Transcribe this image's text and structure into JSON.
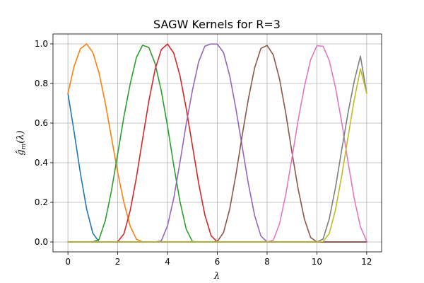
{
  "chart_data": {
    "type": "line",
    "title": "SAGW Kernels for R=3",
    "xlabel": "λ",
    "ylabel_main": "ĝ",
    "ylabel_sub": "m",
    "ylabel_tail": "(λ)",
    "xlim": [
      -0.6,
      12.6
    ],
    "ylim": [
      -0.05,
      1.05
    ],
    "x_ticks": [
      0,
      2,
      4,
      6,
      8,
      10,
      12
    ],
    "x_tick_labels": [
      "0",
      "2",
      "4",
      "6",
      "8",
      "10",
      "12"
    ],
    "y_ticks": [
      0.0,
      0.2,
      0.4,
      0.6,
      0.8,
      1.0
    ],
    "y_tick_labels": [
      "0.0",
      "0.2",
      "0.4",
      "0.6",
      "0.8",
      "1.0"
    ],
    "grid": true,
    "x": [
      0,
      0.25,
      0.5,
      0.75,
      1.0,
      1.25,
      1.5,
      1.75,
      2.0,
      2.25,
      2.5,
      2.75,
      3.0,
      3.25,
      3.5,
      3.75,
      4.0,
      4.25,
      4.5,
      4.75,
      5.0,
      5.25,
      5.5,
      5.75,
      6.0,
      6.25,
      6.5,
      6.75,
      7.0,
      7.25,
      7.5,
      7.75,
      8.0,
      8.25,
      8.5,
      8.75,
      9.0,
      9.25,
      9.5,
      9.75,
      10.0,
      10.25,
      10.5,
      10.75,
      11.0,
      11.25,
      11.5,
      11.75,
      12.0
    ],
    "series": [
      {
        "color": "#1f77b4",
        "values": [
          0.75,
          0.5541,
          0.3471,
          0.1668,
          0.0445,
          0,
          0,
          0,
          0,
          0,
          0,
          0,
          0,
          0,
          0,
          0,
          0,
          0,
          0,
          0,
          0,
          0,
          0,
          0,
          0,
          0,
          0,
          0,
          0,
          0,
          0,
          0,
          0,
          0,
          0,
          0,
          0,
          0,
          0,
          0,
          0,
          0,
          0,
          0,
          0,
          0,
          0,
          0,
          0
        ]
      },
      {
        "color": "#ff7f0e",
        "values": [
          0.75,
          0.888,
          0.9755,
          0.9997,
          0.9568,
          0.8527,
          0.7018,
          0.5257,
          0.3497,
          0.1984,
          0.08,
          0.0141,
          0,
          0,
          0,
          0,
          0,
          0,
          0,
          0,
          0,
          0,
          0,
          0,
          0,
          0,
          0,
          0,
          0,
          0,
          0,
          0,
          0,
          0,
          0,
          0,
          0,
          0,
          0,
          0,
          0,
          0,
          0,
          0,
          0,
          0,
          0,
          0,
          0
        ]
      },
      {
        "color": "#2ca02c",
        "values": [
          0,
          0,
          0,
          0,
          0,
          0.0128,
          0.1075,
          0.2599,
          0.4457,
          0.634,
          0.7972,
          0.9311,
          0.9932,
          0.9818,
          0.9011,
          0.7627,
          0.5844,
          0.3871,
          0.2046,
          0.0648,
          0.0025,
          0,
          0,
          0,
          0,
          0,
          0,
          0,
          0,
          0,
          0,
          0,
          0,
          0,
          0,
          0,
          0,
          0,
          0,
          0,
          0,
          0,
          0,
          0,
          0,
          0,
          0,
          0,
          0
        ]
      },
      {
        "color": "#d62728",
        "values": [
          0,
          0,
          0,
          0,
          0,
          0,
          0,
          0,
          0.0017,
          0.0413,
          0.1577,
          0.3249,
          0.5199,
          0.7115,
          0.8699,
          0.9712,
          0.9991,
          0.9536,
          0.8398,
          0.6744,
          0.486,
          0.2967,
          0.1365,
          0.032,
          0,
          0,
          0,
          0,
          0,
          0,
          0,
          0,
          0,
          0,
          0,
          0,
          0,
          0,
          0,
          0,
          0,
          0,
          0,
          0,
          0,
          0,
          0,
          0,
          0
        ]
      },
      {
        "color": "#9467bd",
        "values": [
          0,
          0,
          0,
          0,
          0,
          0,
          0,
          0,
          0,
          0,
          0,
          0,
          0,
          0,
          0,
          0.005,
          0.0818,
          0.221,
          0.4017,
          0.5944,
          0.7653,
          0.909,
          0.9882,
          0.9994,
          0.999,
          0.9567,
          0.8384,
          0.6705,
          0.481,
          0.293,
          0.134,
          0.0306,
          0,
          0,
          0,
          0,
          0,
          0,
          0,
          0,
          0,
          0,
          0,
          0,
          0,
          0,
          0,
          0,
          0
        ]
      },
      {
        "color": "#8c564b",
        "values": [
          0,
          0,
          0,
          0,
          0,
          0,
          0,
          0,
          0,
          0,
          0,
          0,
          0,
          0,
          0,
          0,
          0,
          0,
          0,
          0,
          0,
          0,
          0,
          0,
          0.0023,
          0.0475,
          0.167,
          0.341,
          0.5383,
          0.723,
          0.879,
          0.977,
          0.992,
          0.944,
          0.822,
          0.651,
          0.452,
          0.266,
          0.115,
          0.0225,
          0,
          0,
          0,
          0,
          0,
          0,
          0,
          0,
          0
        ]
      },
      {
        "color": "#e377c2",
        "values": [
          0,
          0,
          0,
          0,
          0,
          0,
          0,
          0,
          0,
          0,
          0,
          0,
          0,
          0,
          0,
          0,
          0,
          0,
          0,
          0,
          0,
          0,
          0,
          0,
          0,
          0,
          0,
          0,
          0,
          0,
          0,
          0,
          0,
          0.009,
          0.092,
          0.24,
          0.424,
          0.617,
          0.785,
          0.92,
          0.991,
          0.988,
          0.915,
          0.778,
          0.602,
          0.405,
          0.22,
          0.076,
          0.004
        ]
      },
      {
        "color": "#7f7f7f",
        "values": [
          0,
          0,
          0,
          0,
          0,
          0,
          0,
          0,
          0,
          0,
          0,
          0,
          0,
          0,
          0,
          0,
          0,
          0,
          0,
          0,
          0,
          0,
          0,
          0,
          0,
          0,
          0,
          0,
          0,
          0,
          0,
          0,
          0,
          0,
          0,
          0,
          0,
          0,
          0,
          0,
          0,
          0.015,
          0.118,
          0.276,
          0.467,
          0.651,
          0.811,
          0.938,
          0.75
        ]
      },
      {
        "color": "#bcbd22",
        "values": [
          0,
          0,
          0,
          0,
          0,
          0,
          0,
          0,
          0,
          0,
          0,
          0,
          0,
          0,
          0,
          0,
          0,
          0,
          0,
          0,
          0,
          0,
          0,
          0,
          0,
          0,
          0,
          0,
          0,
          0,
          0,
          0,
          0,
          0,
          0,
          0,
          0,
          0,
          0,
          0,
          0,
          0.002,
          0.043,
          0.164,
          0.335,
          0.529,
          0.717,
          0.874,
          0.75
        ]
      }
    ]
  }
}
